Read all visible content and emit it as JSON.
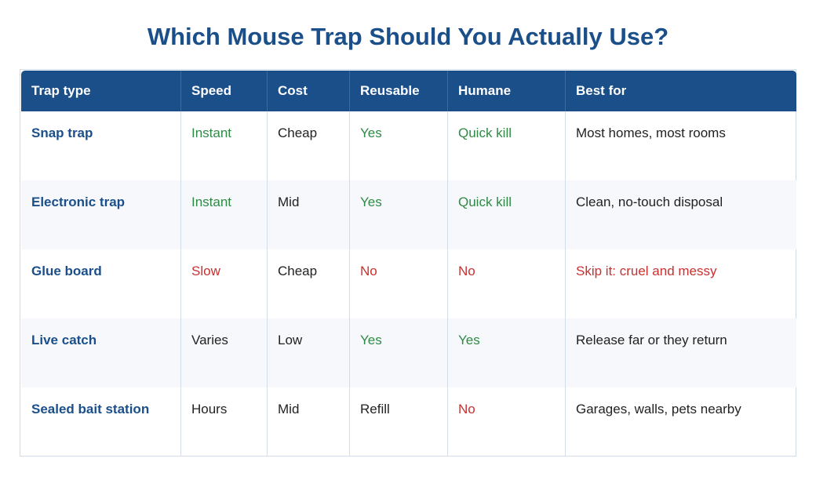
{
  "title": "Which Mouse Trap Should You Actually Use?",
  "colors": {
    "accent": "#1b4f8a",
    "good": "#2f8a45",
    "bad": "#c8312f"
  },
  "table": {
    "headers": [
      "Trap type",
      "Speed",
      "Cost",
      "Reusable",
      "Humane",
      "Best for"
    ],
    "rows": [
      {
        "trap_type": "Snap trap",
        "speed": "Instant",
        "cost": "Cheap",
        "reusable": "Yes",
        "humane": "Quick kill",
        "best_for": "Most homes, most rooms"
      },
      {
        "trap_type": "Electronic trap",
        "speed": "Instant",
        "cost": "Mid",
        "reusable": "Yes",
        "humane": "Quick kill",
        "best_for": "Clean, no-touch disposal"
      },
      {
        "trap_type": "Glue board",
        "speed": "Slow",
        "cost": "Cheap",
        "reusable": "No",
        "humane": "No",
        "best_for": "Skip it: cruel and messy"
      },
      {
        "trap_type": "Live catch",
        "speed": "Varies",
        "cost": "Low",
        "reusable": "Yes",
        "humane": "Yes",
        "best_for": "Release far or they return"
      },
      {
        "trap_type": "Sealed bait station",
        "speed": "Hours",
        "cost": "Mid",
        "reusable": "Refill",
        "humane": "No",
        "best_for": "Garages, walls, pets nearby"
      }
    ]
  }
}
